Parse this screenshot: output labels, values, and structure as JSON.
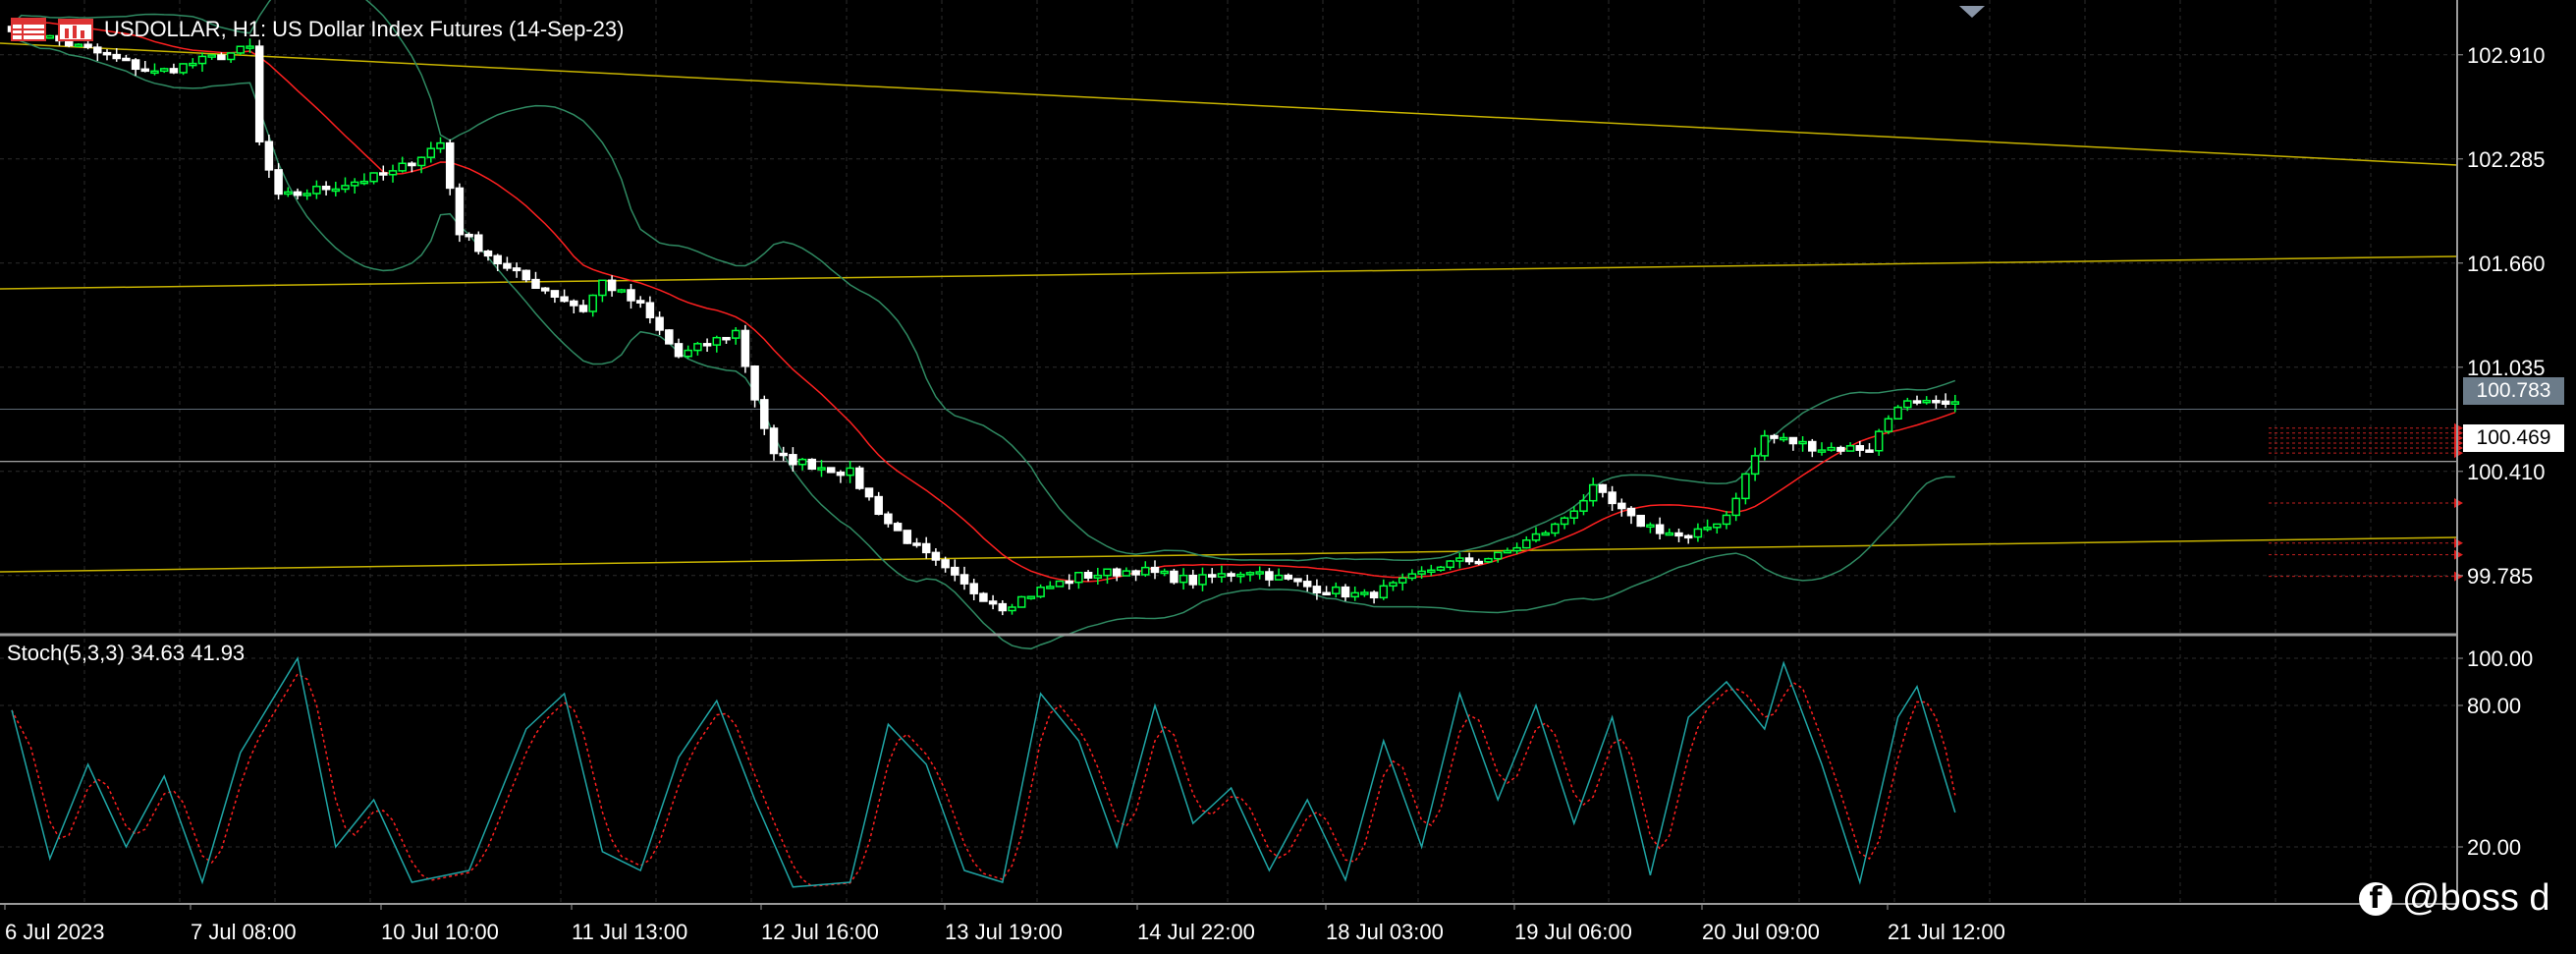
{
  "header": {
    "symbol_text": "USDOLLAR, H1:  US Dollar Index Futures (14-Sep-23)"
  },
  "indicator": {
    "label": "Stoch(5,3,3) 34.63 41.93"
  },
  "price_tags": {
    "current": "100.783",
    "bid": "100.469"
  },
  "watermark": {
    "text": "@boss d"
  },
  "colors": {
    "background": "#000000",
    "grid": "#2c2c2c",
    "bull_candle": "#00ff3c",
    "bear_candle": "#ffffff",
    "ma": "#ff2020",
    "bollinger": "#2f8a62",
    "trendline": "#c8b400",
    "stoch_main": "#1fa6a6",
    "stoch_signal": "#ff2020"
  },
  "chart_data": [
    {
      "type": "candlestick",
      "title": "USDOLLAR, H1:  US Dollar Index Futures (14-Sep-23)",
      "x_tick_labels": [
        "6 Jul 2023",
        "7 Jul 08:00",
        "10 Jul 10:00",
        "11 Jul 13:00",
        "12 Jul 16:00",
        "13 Jul 19:00",
        "14 Jul 22:00",
        "18 Jul 03:00",
        "19 Jul 06:00",
        "20 Jul 09:00",
        "21 Jul 12:00"
      ],
      "y_tick_labels": [
        "102.910",
        "102.285",
        "101.660",
        "101.035",
        "100.410",
        "99.785"
      ],
      "ylim": [
        99.43,
        103.18
      ],
      "close_anchors": [
        [
          0,
          103.08
        ],
        [
          8,
          102.94
        ],
        [
          15,
          102.8
        ],
        [
          25,
          102.95
        ],
        [
          26,
          102.38
        ],
        [
          28,
          102.05
        ],
        [
          40,
          102.2
        ],
        [
          45,
          102.38
        ],
        [
          47,
          101.85
        ],
        [
          52,
          101.62
        ],
        [
          60,
          101.38
        ],
        [
          62,
          101.55
        ],
        [
          66,
          101.4
        ],
        [
          70,
          101.1
        ],
        [
          76,
          101.25
        ],
        [
          78,
          100.85
        ],
        [
          80,
          100.5
        ],
        [
          88,
          100.4
        ],
        [
          92,
          100.1
        ],
        [
          96,
          99.9
        ],
        [
          100,
          99.72
        ],
        [
          104,
          99.6
        ],
        [
          108,
          99.7
        ],
        [
          112,
          99.78
        ],
        [
          118,
          99.82
        ],
        [
          124,
          99.75
        ],
        [
          130,
          99.82
        ],
        [
          136,
          99.72
        ],
        [
          142,
          99.66
        ],
        [
          146,
          99.74
        ],
        [
          150,
          99.85
        ],
        [
          156,
          99.9
        ],
        [
          162,
          100.08
        ],
        [
          166,
          100.3
        ],
        [
          170,
          100.12
        ],
        [
          176,
          100.0
        ],
        [
          180,
          100.15
        ],
        [
          184,
          100.62
        ],
        [
          190,
          100.55
        ],
        [
          195,
          100.55
        ],
        [
          198,
          100.82
        ],
        [
          204,
          100.8
        ]
      ],
      "ma_label": "",
      "current_price": "100.783",
      "bid_price": "100.469"
    },
    {
      "type": "line",
      "title": "Stoch(5,3,3) 34.63 41.93",
      "y_tick_labels": [
        "100.00",
        "80.00",
        "20.00"
      ],
      "ylim": [
        0,
        100
      ],
      "main_anchors": [
        [
          0,
          78
        ],
        [
          4,
          15
        ],
        [
          8,
          55
        ],
        [
          12,
          20
        ],
        [
          16,
          50
        ],
        [
          20,
          5
        ],
        [
          24,
          60
        ],
        [
          30,
          100
        ],
        [
          34,
          20
        ],
        [
          38,
          40
        ],
        [
          42,
          5
        ],
        [
          48,
          10
        ],
        [
          54,
          70
        ],
        [
          58,
          85
        ],
        [
          62,
          18
        ],
        [
          66,
          10
        ],
        [
          70,
          58
        ],
        [
          74,
          82
        ],
        [
          78,
          40
        ],
        [
          82,
          3
        ],
        [
          88,
          5
        ],
        [
          92,
          72
        ],
        [
          96,
          55
        ],
        [
          100,
          10
        ],
        [
          104,
          5
        ],
        [
          108,
          85
        ],
        [
          112,
          65
        ],
        [
          116,
          20
        ],
        [
          120,
          80
        ],
        [
          124,
          30
        ],
        [
          128,
          45
        ],
        [
          132,
          10
        ],
        [
          136,
          40
        ],
        [
          140,
          6
        ],
        [
          144,
          65
        ],
        [
          148,
          20
        ],
        [
          152,
          85
        ],
        [
          156,
          40
        ],
        [
          160,
          80
        ],
        [
          164,
          30
        ],
        [
          168,
          75
        ],
        [
          172,
          8
        ],
        [
          176,
          75
        ],
        [
          180,
          90
        ],
        [
          184,
          70
        ],
        [
          186,
          98
        ],
        [
          190,
          55
        ],
        [
          194,
          5
        ],
        [
          198,
          75
        ],
        [
          200,
          88
        ],
        [
          204,
          34.63
        ]
      ],
      "signal_last": 41.93
    }
  ]
}
